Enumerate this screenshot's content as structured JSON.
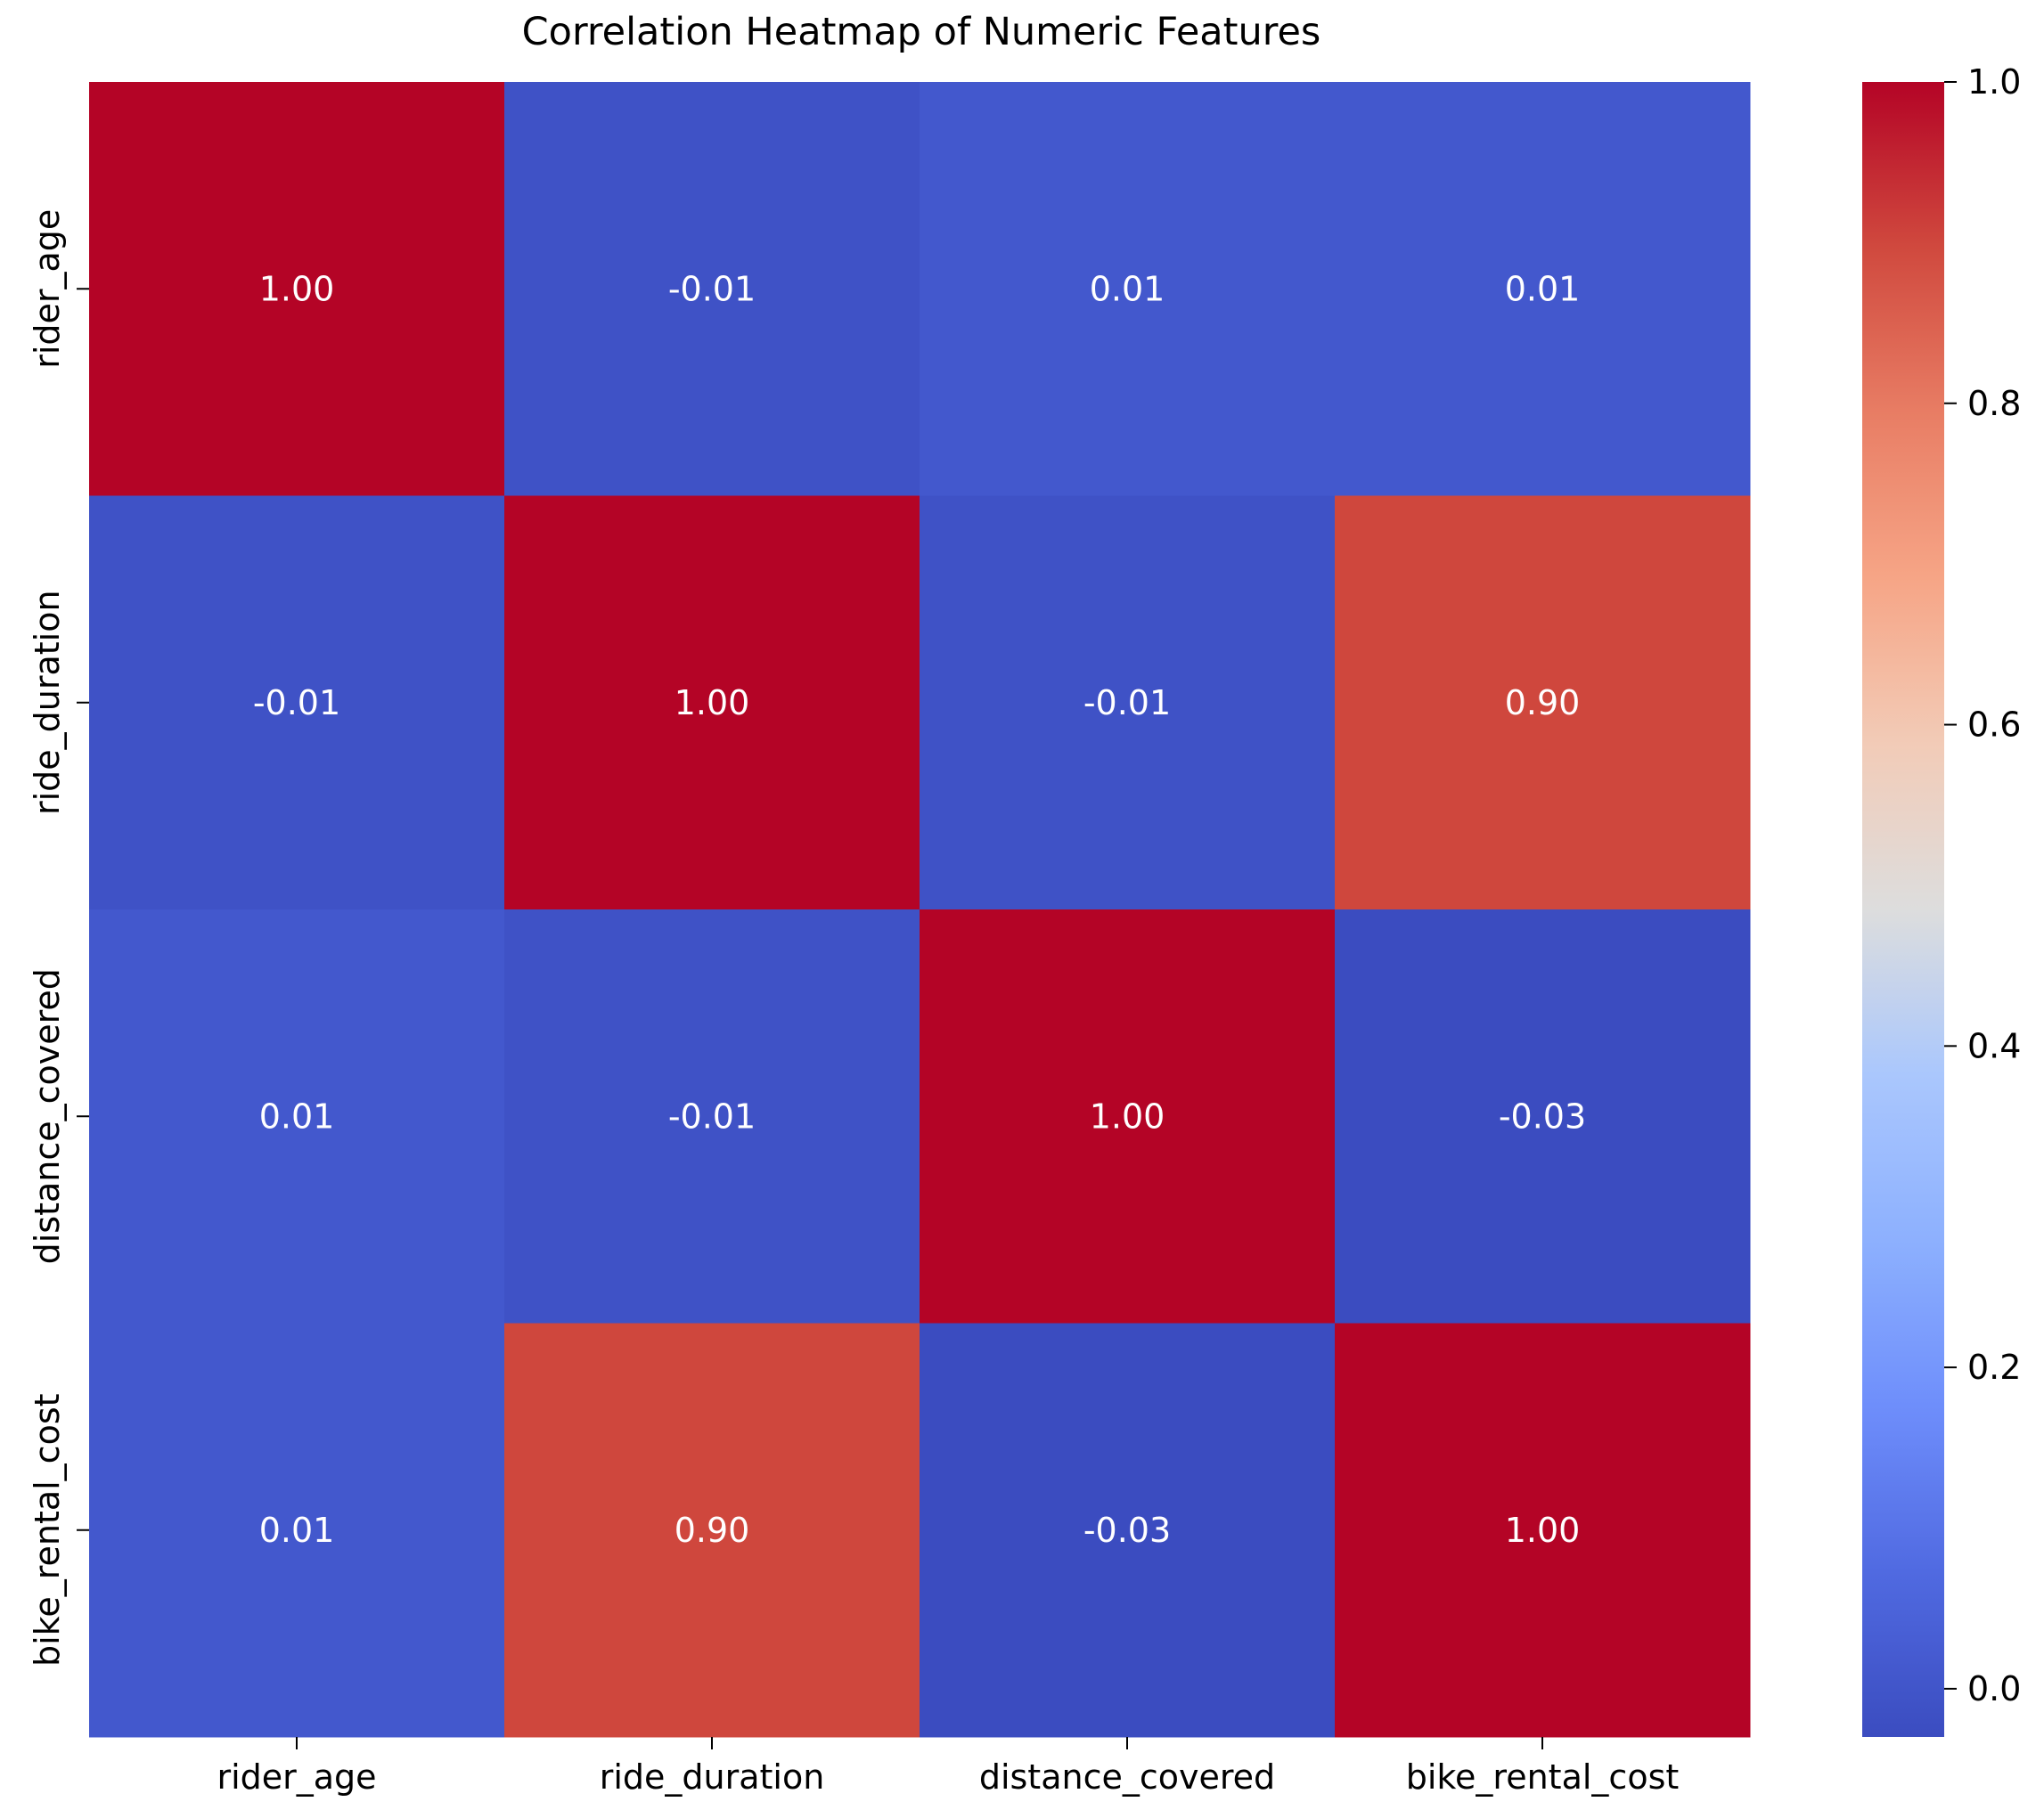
{
  "chart_data": {
    "type": "heatmap",
    "title": "Correlation Heatmap of Numeric Features",
    "xlabel": "",
    "ylabel": "",
    "row_labels": [
      "rider_age",
      "ride_duration",
      "distance_covered",
      "bike_rental_cost"
    ],
    "col_labels": [
      "rider_age",
      "ride_duration",
      "distance_covered",
      "bike_rental_cost"
    ],
    "matrix": [
      [
        1.0,
        -0.01,
        0.01,
        0.01
      ],
      [
        -0.01,
        1.0,
        -0.01,
        0.9
      ],
      [
        0.01,
        -0.01,
        1.0,
        -0.03
      ],
      [
        0.01,
        0.9,
        -0.03,
        1.0
      ]
    ],
    "cell_labels": [
      [
        "1.00",
        "-0.01",
        "0.01",
        "0.01"
      ],
      [
        "-0.01",
        "1.00",
        "-0.01",
        "0.90"
      ],
      [
        "0.01",
        "-0.01",
        "1.00",
        "-0.03"
      ],
      [
        "0.01",
        "0.90",
        "-0.03",
        "1.00"
      ]
    ],
    "colormap": "coolwarm",
    "color_range": [
      -0.03,
      1.0
    ],
    "colorbar_ticks": [
      0.0,
      0.2,
      0.4,
      0.6,
      0.8,
      1.0
    ],
    "colorbar_tick_labels": [
      "0.0",
      "0.2",
      "0.4",
      "0.6",
      "0.8",
      "1.0"
    ],
    "grid": false,
    "legend": "colorbar-right"
  }
}
